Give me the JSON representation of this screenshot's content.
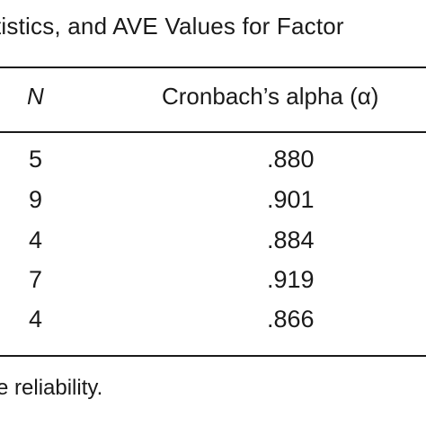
{
  "caption": "tistics, and AVE Values for Factor",
  "header": {
    "n": "N",
    "alpha": "Cronbach’s alpha (α)"
  },
  "rows": [
    {
      "n": "5",
      "alpha": ".880"
    },
    {
      "n": "9",
      "alpha": ".901"
    },
    {
      "n": "4",
      "alpha": ".884"
    },
    {
      "n": "7",
      "alpha": ".919"
    },
    {
      "n": "4",
      "alpha": ".866"
    }
  ],
  "note": "e reliability."
}
